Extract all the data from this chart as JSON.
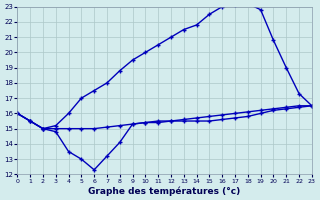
{
  "bg_color": "#d4eced",
  "grid_color": "#adc8c8",
  "line_color": "#0000bb",
  "xlabel": "Graphe des températures (°c)",
  "xlim": [
    0,
    23
  ],
  "ylim": [
    12,
    23
  ],
  "xticks": [
    0,
    1,
    2,
    3,
    4,
    5,
    6,
    7,
    8,
    9,
    10,
    11,
    12,
    13,
    14,
    15,
    16,
    17,
    18,
    19,
    20,
    21,
    22,
    23
  ],
  "yticks": [
    12,
    13,
    14,
    15,
    16,
    17,
    18,
    19,
    20,
    21,
    22,
    23
  ],
  "lineA_x": [
    0,
    1,
    2,
    3,
    4,
    5,
    6,
    7,
    8,
    9,
    10,
    11,
    12,
    13,
    14,
    15,
    16,
    17,
    18,
    19,
    20,
    21,
    22,
    23
  ],
  "lineA_y": [
    16.0,
    15.5,
    15.0,
    15.0,
    15.0,
    15.0,
    15.0,
    15.1,
    15.2,
    15.3,
    15.4,
    15.5,
    15.5,
    15.6,
    15.7,
    15.8,
    15.9,
    16.0,
    16.1,
    16.2,
    16.3,
    16.4,
    16.5,
    16.5
  ],
  "lineB_x": [
    0,
    1,
    2,
    3,
    4,
    5,
    6,
    7,
    8,
    9,
    10,
    11,
    12,
    13,
    14,
    15,
    16,
    17,
    18,
    19,
    20,
    21,
    22,
    23
  ],
  "lineB_y": [
    16.0,
    15.5,
    15.0,
    15.2,
    16.0,
    17.0,
    17.5,
    18.0,
    18.8,
    19.5,
    20.0,
    20.5,
    21.0,
    21.5,
    21.8,
    22.5,
    23.0,
    23.1,
    23.2,
    22.8,
    20.8,
    19.0,
    17.3,
    16.5
  ],
  "lineC_x": [
    0,
    1,
    2,
    3,
    4,
    5,
    6,
    7,
    8,
    9,
    10,
    11,
    12,
    13,
    14,
    15,
    16,
    17,
    18,
    19,
    20,
    21,
    22,
    23
  ],
  "lineC_y": [
    16.0,
    15.5,
    15.0,
    14.8,
    13.5,
    13.0,
    12.3,
    13.2,
    14.1,
    15.3,
    15.4,
    15.4,
    15.5,
    15.5,
    15.5,
    15.5,
    15.6,
    15.7,
    15.8,
    16.0,
    16.2,
    16.3,
    16.4,
    16.5
  ]
}
